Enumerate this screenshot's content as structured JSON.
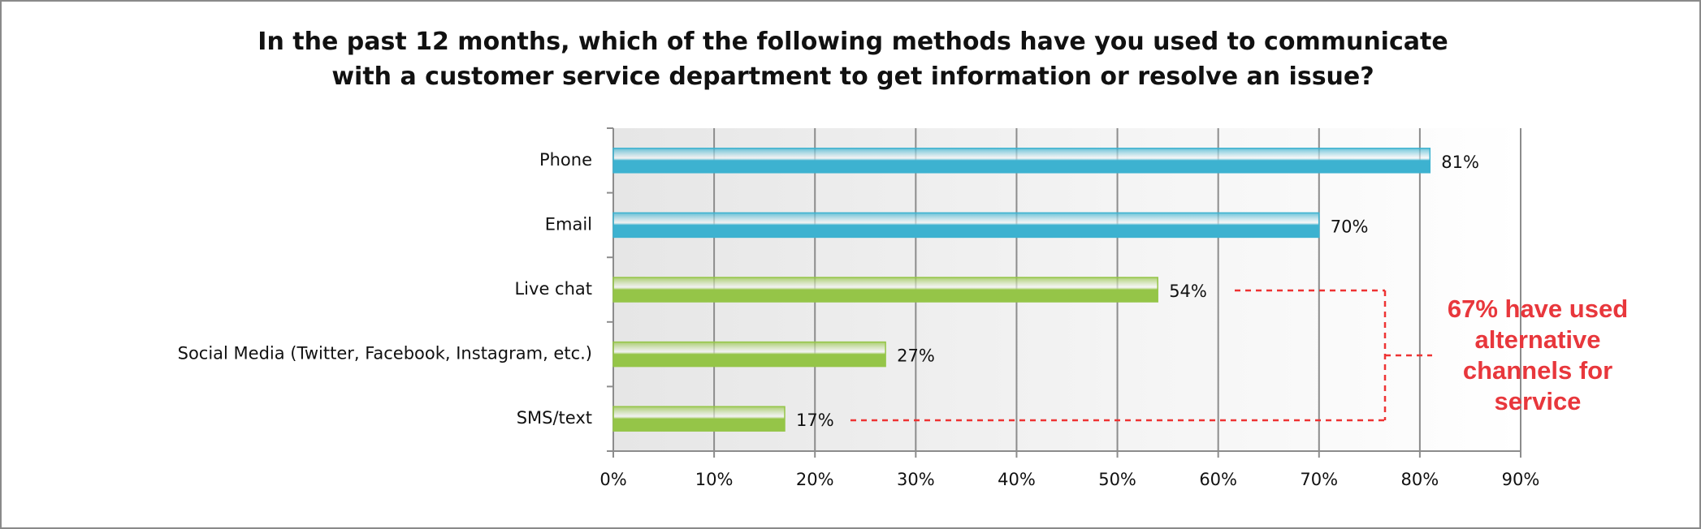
{
  "chart_data": {
    "type": "bar",
    "orientation": "horizontal",
    "title": "In the past 12 months, which of the following methods have you used to communicate with a customer service department to get information or resolve an issue?",
    "categories": [
      "Phone",
      "Email",
      "Live chat",
      "Social Media (Twitter, Facebook, Instagram, etc.)",
      "SMS/text"
    ],
    "values": [
      81,
      70,
      54,
      27,
      17
    ],
    "value_labels": [
      "81%",
      "70%",
      "54%",
      "27%",
      "17%"
    ],
    "colors": [
      "#3fb8d6",
      "#3fb8d6",
      "#9acb4a",
      "#9acb4a",
      "#9acb4a"
    ],
    "xlim": [
      0,
      90
    ],
    "xticks": [
      {
        "value": 0,
        "label": "0%"
      },
      {
        "value": 10,
        "label": "10%"
      },
      {
        "value": 20,
        "label": "20%"
      },
      {
        "value": 30,
        "label": "30%"
      },
      {
        "value": 40,
        "label": "40%"
      },
      {
        "value": 50,
        "label": "50%"
      },
      {
        "value": 60,
        "label": "60%"
      },
      {
        "value": 70,
        "label": "70%"
      },
      {
        "value": 80,
        "label": "80%"
      },
      {
        "value": 90,
        "label": "90%"
      }
    ],
    "grid": true,
    "annotation": "67% have used alternative channels for service"
  }
}
